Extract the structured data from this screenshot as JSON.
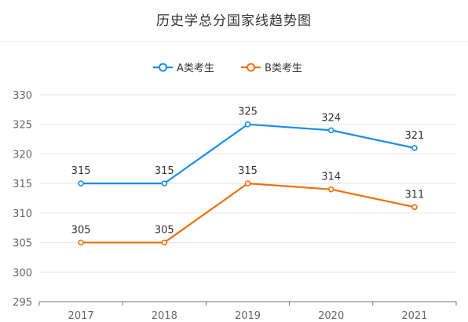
{
  "chart_data": {
    "type": "line",
    "title": "历史学总分国家线趋势图",
    "categories": [
      "2017",
      "2018",
      "2019",
      "2020",
      "2021"
    ],
    "series": [
      {
        "name": "A类考生",
        "color": "#1a8cec",
        "values": [
          315,
          315,
          325,
          324,
          321
        ]
      },
      {
        "name": "B类考生",
        "color": "#ee6f11",
        "values": [
          305,
          305,
          315,
          314,
          311
        ]
      }
    ],
    "ylim": [
      295,
      330
    ],
    "yticks": [
      295,
      300,
      305,
      310,
      315,
      320,
      325,
      330
    ],
    "grid": true,
    "legend": "top-center",
    "xlabel": "",
    "ylabel": ""
  }
}
